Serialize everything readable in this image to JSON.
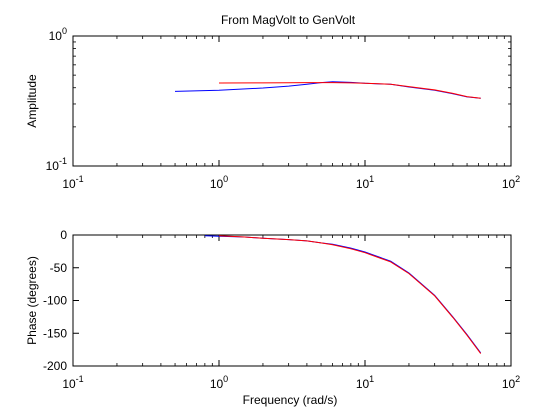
{
  "title": "From MagVolt to GenVolt",
  "chart_data": [
    {
      "type": "line",
      "xscale": "log",
      "yscale": "log",
      "xlim": [
        0.1,
        100
      ],
      "ylim": [
        0.1,
        1
      ],
      "grid": false,
      "xlabel": "",
      "ylabel": "Amplitude",
      "xticks": [
        {
          "base": "10",
          "exp": "-1"
        },
        {
          "base": "10",
          "exp": "0"
        },
        {
          "base": "10",
          "exp": "1"
        },
        {
          "base": "10",
          "exp": "2"
        }
      ],
      "yticks": [
        {
          "base": "10",
          "exp": "-1"
        },
        {
          "base": "10",
          "exp": "0"
        }
      ],
      "series": [
        {
          "color": "#0000ff",
          "x": [
            0.5,
            1,
            2,
            3,
            4,
            5,
            6,
            8,
            10,
            15,
            20,
            30,
            40,
            50,
            62
          ],
          "y": [
            0.375,
            0.383,
            0.398,
            0.412,
            0.425,
            0.438,
            0.445,
            0.44,
            0.433,
            0.425,
            0.405,
            0.382,
            0.36,
            0.34,
            0.332
          ]
        },
        {
          "color": "#ff0000",
          "x": [
            1,
            2,
            3,
            4,
            5,
            6,
            8,
            10,
            15,
            20,
            30,
            40,
            50,
            62
          ],
          "y": [
            0.435,
            0.436,
            0.437,
            0.438,
            0.438,
            0.438,
            0.436,
            0.433,
            0.426,
            0.408,
            0.385,
            0.362,
            0.342,
            0.332
          ]
        }
      ]
    },
    {
      "type": "line",
      "xscale": "log",
      "yscale": "linear",
      "xlim": [
        0.1,
        100
      ],
      "ylim": [
        -200,
        0
      ],
      "grid": false,
      "xlabel": "Frequency (rad/s)",
      "ylabel": "Phase (degrees)",
      "xticks": [
        {
          "base": "10",
          "exp": "-1"
        },
        {
          "base": "10",
          "exp": "0"
        },
        {
          "base": "10",
          "exp": "1"
        },
        {
          "base": "10",
          "exp": "2"
        }
      ],
      "yticks": [
        {
          "value": 0,
          "label": "0"
        },
        {
          "value": -50,
          "label": "-50"
        },
        {
          "value": -100,
          "label": "-100"
        },
        {
          "value": -150,
          "label": "-150"
        },
        {
          "value": -200,
          "label": "-200"
        }
      ],
      "series": [
        {
          "color": "#0000ff",
          "x": [
            0.8,
            1,
            1.5,
            2,
            3,
            4,
            5,
            6,
            8,
            10,
            15,
            20,
            30,
            40,
            50,
            62
          ],
          "y": [
            -1,
            -2,
            -3,
            -5,
            -7,
            -9,
            -12,
            -14,
            -20,
            -26,
            -40,
            -58,
            -92,
            -125,
            -152,
            -180
          ]
        },
        {
          "color": "#ff0000",
          "x": [
            1,
            1.5,
            2,
            3,
            4,
            5,
            6,
            8,
            10,
            15,
            20,
            30,
            40,
            50,
            62
          ],
          "y": [
            -1,
            -3,
            -5,
            -7,
            -9,
            -12,
            -15,
            -21,
            -27,
            -41,
            -59,
            -93,
            -126,
            -153,
            -181
          ]
        }
      ]
    }
  ]
}
